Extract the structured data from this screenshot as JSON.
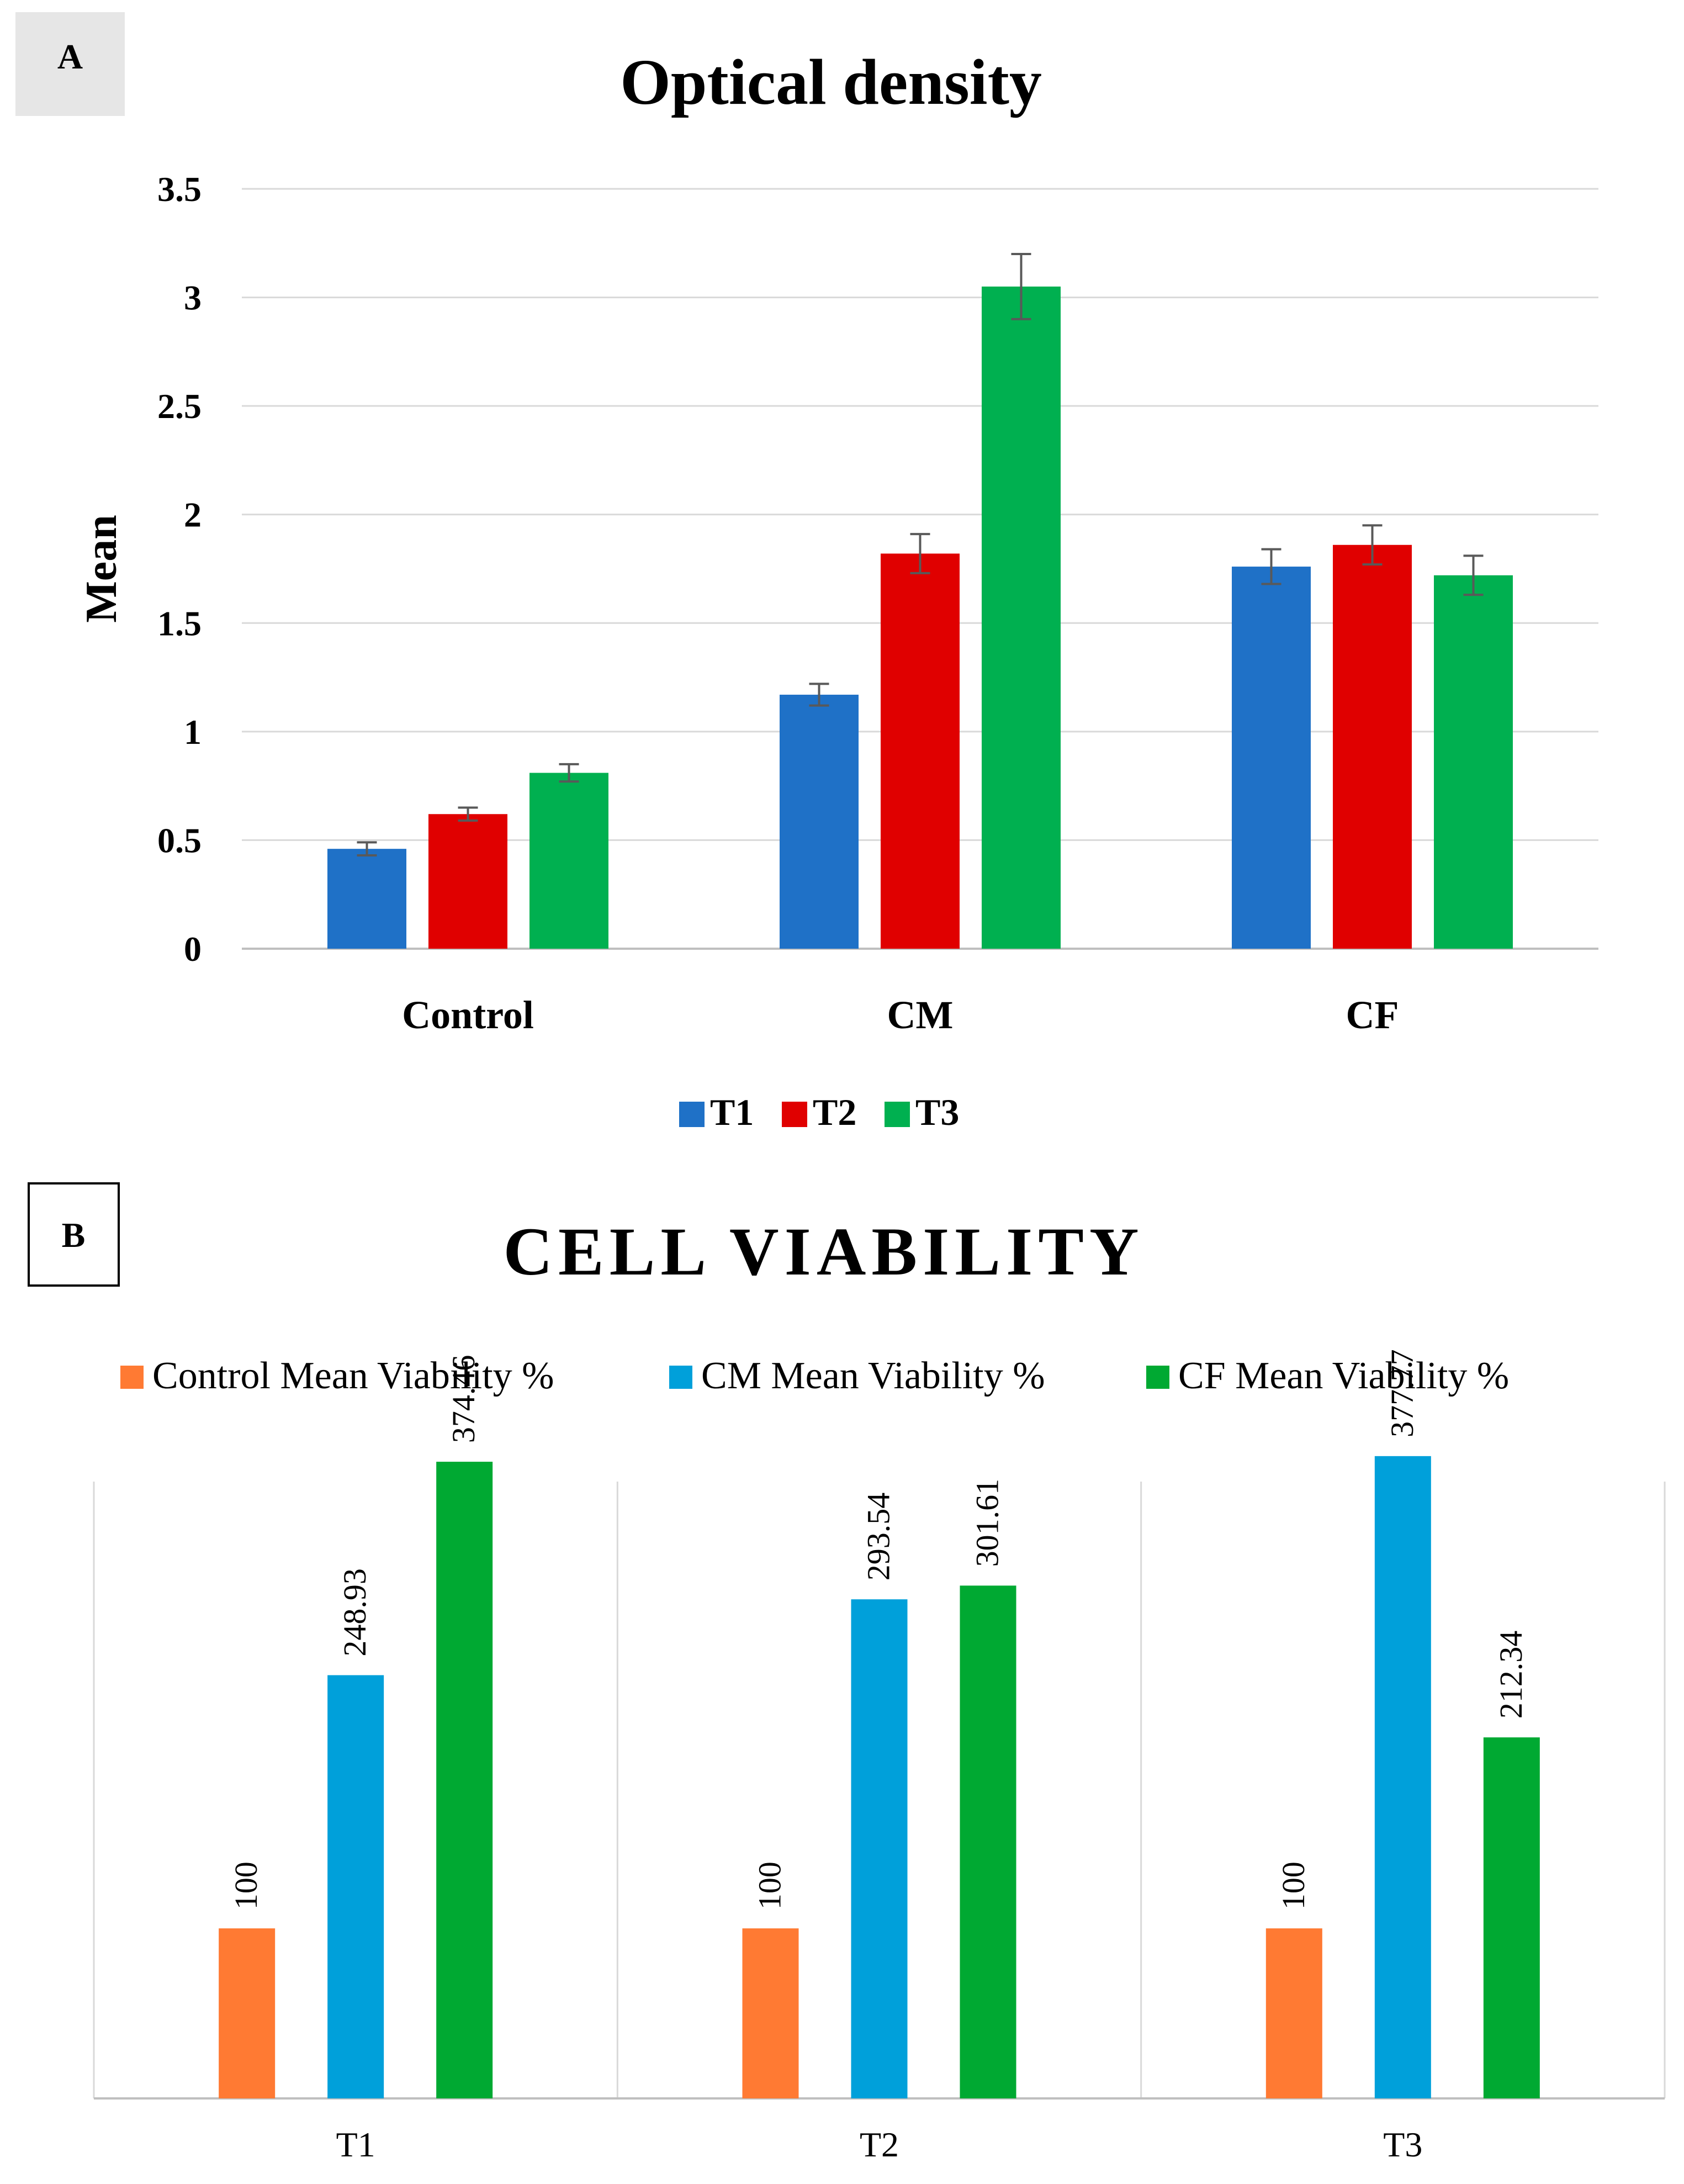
{
  "colors": {
    "panel_a_t1": "#1f71c7",
    "panel_a_t2": "#e00000",
    "panel_a_t3": "#00b050",
    "panel_b_control": "#ff7a33",
    "panel_b_cm": "#00a0da",
    "panel_b_cf": "#00a932",
    "grid": "#d9d9d9",
    "axis": "#bfbfbf",
    "error_bar": "#595959",
    "text": "#000000",
    "label_a_bg": "#e6e6e6"
  },
  "chart_data": [
    {
      "panel_label": "A",
      "type": "bar",
      "title": "Optical density",
      "xlabel": "",
      "ylabel": "Mean",
      "ylim": [
        0,
        3.5
      ],
      "yticks": [
        0,
        0.5,
        1,
        1.5,
        2,
        2.5,
        3,
        3.5
      ],
      "ytick_labels": [
        "0",
        "0.5",
        "1",
        "1.5",
        "2",
        "2.5",
        "3",
        "3.5"
      ],
      "grid": true,
      "legend_position": "bottom",
      "categories": [
        "Control",
        "CM",
        "CF"
      ],
      "series": [
        {
          "name": "T1",
          "color_key": "panel_a_t1",
          "values": [
            0.46,
            1.17,
            1.76
          ],
          "errors": [
            0.03,
            0.05,
            0.08
          ]
        },
        {
          "name": "T2",
          "color_key": "panel_a_t2",
          "values": [
            0.62,
            1.82,
            1.86
          ],
          "errors": [
            0.03,
            0.09,
            0.09
          ]
        },
        {
          "name": "T3",
          "color_key": "panel_a_t3",
          "values": [
            0.81,
            3.05,
            1.72
          ],
          "errors": [
            0.04,
            0.15,
            0.09
          ]
        }
      ]
    },
    {
      "panel_label": "B",
      "type": "bar",
      "title": "CELL VIABILITY",
      "xlabel": "",
      "ylabel": "",
      "ylim": [
        0,
        380
      ],
      "grid": false,
      "legend_position": "top",
      "categories": [
        "T1",
        "T2",
        "T3"
      ],
      "series": [
        {
          "name": "Control Mean Viability %",
          "color_key": "panel_b_control",
          "values": [
            100,
            100,
            100
          ],
          "labels": [
            "100",
            "100",
            "100"
          ]
        },
        {
          "name": "CM Mean Viability %",
          "color_key": "panel_b_cm",
          "values": [
            248.93,
            293.54,
            377.77
          ],
          "labels": [
            "248.93",
            "293.54",
            "377.77"
          ]
        },
        {
          "name": "CF Mean Viability %",
          "color_key": "panel_b_cf",
          "values": [
            374.46,
            301.61,
            212.34
          ],
          "labels": [
            "374.46",
            "301.61",
            "212.34"
          ]
        }
      ]
    }
  ]
}
